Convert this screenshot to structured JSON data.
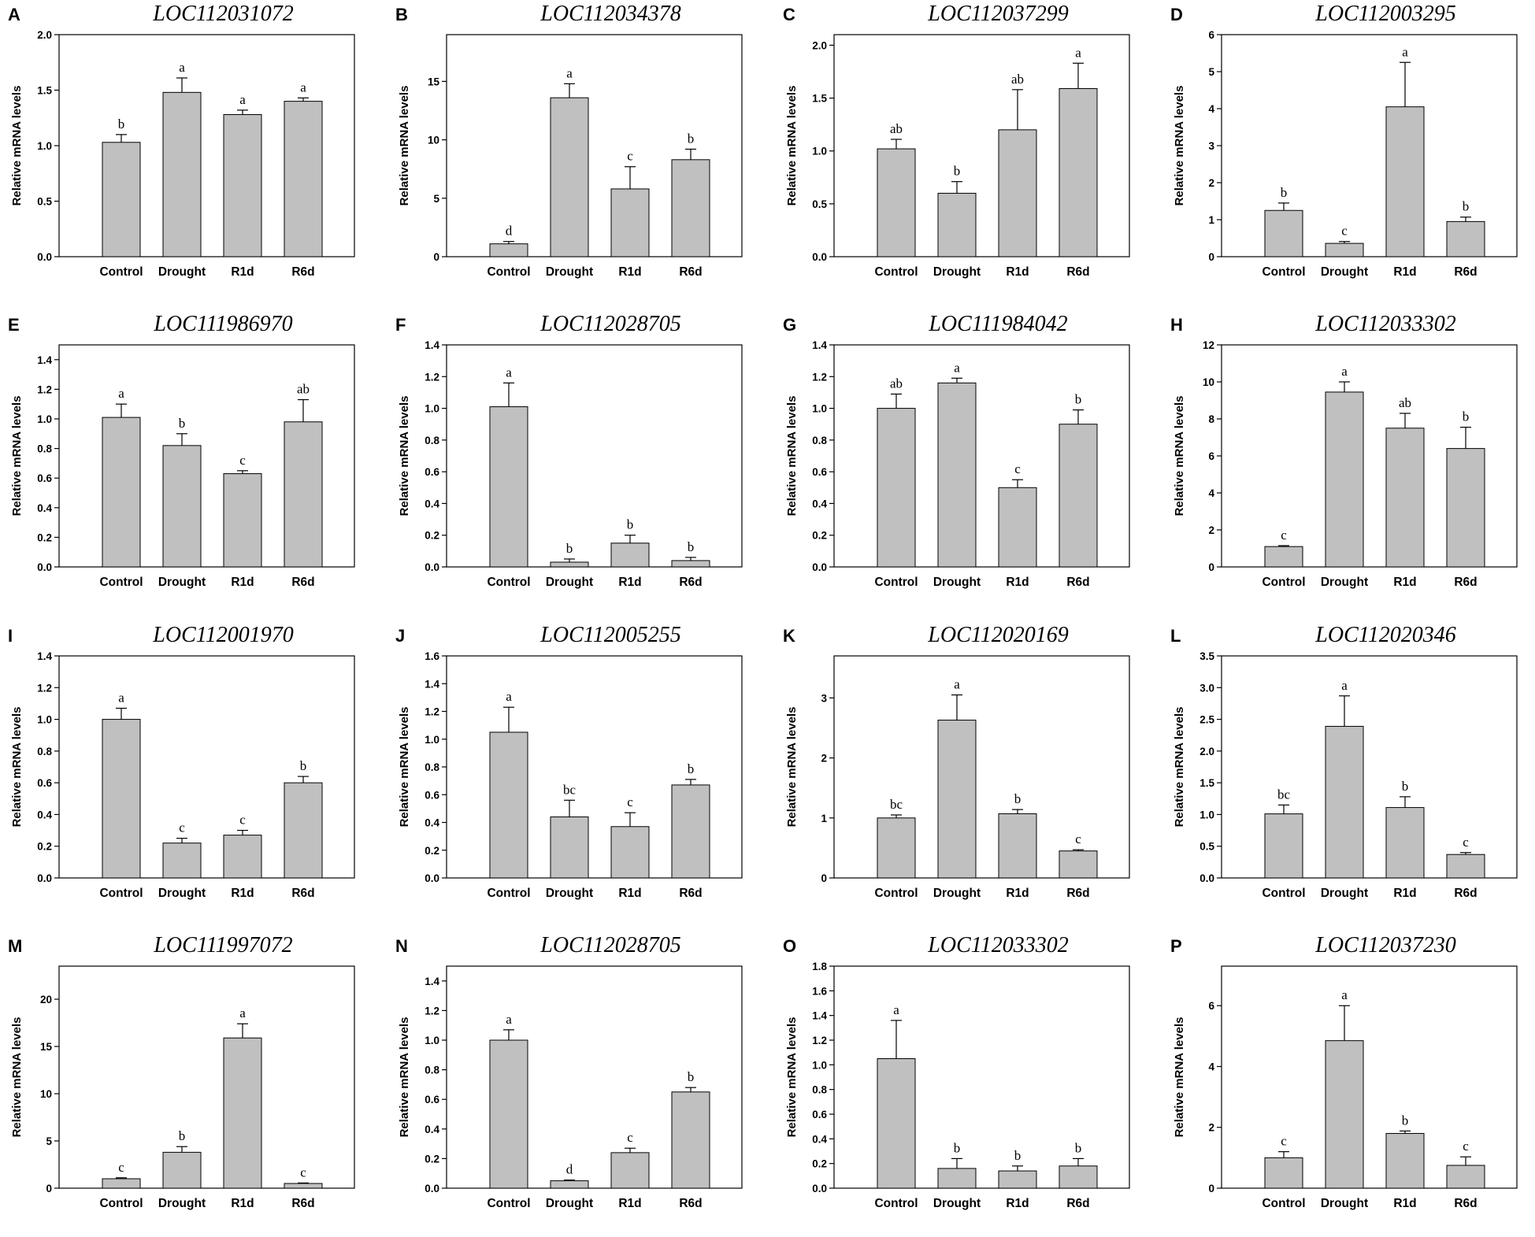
{
  "figure": {
    "bar_color": "#c0c0c0",
    "axis_color": "#000000"
  },
  "chart_data": [
    {
      "panel": "A",
      "type": "bar",
      "title": "LOC112031072",
      "ylabel": "Relative mRNA levels",
      "categories": [
        "Control",
        "Drought",
        "R1d",
        "R6d"
      ],
      "values": [
        1.03,
        1.48,
        1.28,
        1.4
      ],
      "errors": [
        0.07,
        0.13,
        0.04,
        0.03
      ],
      "letters": [
        "b",
        "a",
        "a",
        "a"
      ],
      "ylim": [
        0,
        2.0
      ],
      "ticks": [
        "0.0",
        "0.5",
        "1.0",
        "1.5",
        "2.0"
      ]
    },
    {
      "panel": "B",
      "type": "bar",
      "title": "LOC112034378",
      "ylabel": "Relative mRNA levels",
      "categories": [
        "Control",
        "Drought",
        "R1d",
        "R6d"
      ],
      "values": [
        1.1,
        13.6,
        5.8,
        8.3
      ],
      "errors": [
        0.2,
        1.2,
        1.9,
        0.9
      ],
      "letters": [
        "d",
        "a",
        "c",
        "b"
      ],
      "ylim": [
        0,
        19
      ],
      "ticks": [
        "0",
        "5",
        "10",
        "15"
      ]
    },
    {
      "panel": "C",
      "type": "bar",
      "title": "LOC112037299",
      "ylabel": "Relative mRNA levels",
      "categories": [
        "Control",
        "Drought",
        "R1d",
        "R6d"
      ],
      "values": [
        1.02,
        0.6,
        1.2,
        1.59
      ],
      "errors": [
        0.09,
        0.11,
        0.38,
        0.24
      ],
      "letters": [
        "ab",
        "b",
        "ab",
        "a"
      ],
      "ylim": [
        0,
        2.1
      ],
      "ticks": [
        "0.0",
        "0.5",
        "1.0",
        "1.5",
        "2.0"
      ]
    },
    {
      "panel": "D",
      "type": "bar",
      "title": "LOC112003295",
      "ylabel": "Relative mRNA levels",
      "categories": [
        "Control",
        "Drought",
        "R1d",
        "R6d"
      ],
      "values": [
        1.25,
        0.36,
        4.05,
        0.95
      ],
      "errors": [
        0.2,
        0.05,
        1.2,
        0.12
      ],
      "letters": [
        "b",
        "c",
        "a",
        "b"
      ],
      "ylim": [
        0,
        6
      ],
      "ticks": [
        "0",
        "1",
        "2",
        "3",
        "4",
        "5",
        "6"
      ]
    },
    {
      "panel": "E",
      "type": "bar",
      "title": "LOC111986970",
      "ylabel": "Relative mRNA levels",
      "categories": [
        "Control",
        "Drought",
        "R1d",
        "R6d"
      ],
      "values": [
        1.01,
        0.82,
        0.63,
        0.98
      ],
      "errors": [
        0.09,
        0.08,
        0.02,
        0.15
      ],
      "letters": [
        "a",
        "b",
        "c",
        "ab"
      ],
      "ylim": [
        0,
        1.5
      ],
      "ticks": [
        "0.0",
        "0.2",
        "0.4",
        "0.6",
        "0.8",
        "1.0",
        "1.2",
        "1.4"
      ]
    },
    {
      "panel": "F",
      "type": "bar",
      "title": "LOC112028705",
      "ylabel": "Relative mRNA levels",
      "categories": [
        "Control",
        "Drought",
        "R1d",
        "R6d"
      ],
      "values": [
        1.01,
        0.03,
        0.15,
        0.04
      ],
      "errors": [
        0.15,
        0.02,
        0.05,
        0.02
      ],
      "letters": [
        "a",
        "b",
        "b",
        "b"
      ],
      "ylim": [
        0,
        1.4
      ],
      "ticks": [
        "0.0",
        "0.2",
        "0.4",
        "0.6",
        "0.8",
        "1.0",
        "1.2",
        "1.4"
      ]
    },
    {
      "panel": "G",
      "type": "bar",
      "title": "LOC111984042",
      "ylabel": "Relative mRNA levels",
      "categories": [
        "Control",
        "Drought",
        "R1d",
        "R6d"
      ],
      "values": [
        1.0,
        1.16,
        0.5,
        0.9
      ],
      "errors": [
        0.09,
        0.03,
        0.05,
        0.09
      ],
      "letters": [
        "ab",
        "a",
        "c",
        "b"
      ],
      "ylim": [
        0,
        1.4
      ],
      "ticks": [
        "0.0",
        "0.2",
        "0.4",
        "0.6",
        "0.8",
        "1.0",
        "1.2",
        "1.4"
      ]
    },
    {
      "panel": "H",
      "type": "bar",
      "title": "LOC112033302",
      "ylabel": "Relative mRNA levels",
      "categories": [
        "Control",
        "Drought",
        "R1d",
        "R6d"
      ],
      "values": [
        1.1,
        9.45,
        7.5,
        6.4
      ],
      "errors": [
        0.05,
        0.55,
        0.8,
        1.15
      ],
      "letters": [
        "c",
        "a",
        "ab",
        "b"
      ],
      "ylim": [
        0,
        12
      ],
      "ticks": [
        "0",
        "2",
        "4",
        "6",
        "8",
        "10",
        "12"
      ]
    },
    {
      "panel": "I",
      "type": "bar",
      "title": "LOC112001970",
      "ylabel": "Relative mRNA levels",
      "categories": [
        "Control",
        "Drought",
        "R1d",
        "R6d"
      ],
      "values": [
        1.0,
        0.22,
        0.27,
        0.6
      ],
      "errors": [
        0.07,
        0.03,
        0.03,
        0.04
      ],
      "letters": [
        "a",
        "c",
        "c",
        "b"
      ],
      "ylim": [
        0,
        1.4
      ],
      "ticks": [
        "0.0",
        "0.2",
        "0.4",
        "0.6",
        "0.8",
        "1.0",
        "1.2",
        "1.4"
      ]
    },
    {
      "panel": "J",
      "type": "bar",
      "title": "LOC112005255",
      "ylabel": "Relative mRNA levels",
      "categories": [
        "Control",
        "Drought",
        "R1d",
        "R6d"
      ],
      "values": [
        1.05,
        0.44,
        0.37,
        0.67
      ],
      "errors": [
        0.18,
        0.12,
        0.1,
        0.04
      ],
      "letters": [
        "a",
        "bc",
        "c",
        "b"
      ],
      "ylim": [
        0,
        1.6
      ],
      "ticks": [
        "0.0",
        "0.2",
        "0.4",
        "0.6",
        "0.8",
        "1.0",
        "1.2",
        "1.4",
        "1.6"
      ]
    },
    {
      "panel": "K",
      "type": "bar",
      "title": "LOC112020169",
      "ylabel": "Relative mRNA levels",
      "categories": [
        "Control",
        "Drought",
        "R1d",
        "R6d"
      ],
      "values": [
        1.0,
        2.63,
        1.07,
        0.45
      ],
      "errors": [
        0.05,
        0.42,
        0.07,
        0.02
      ],
      "letters": [
        "bc",
        "a",
        "b",
        "c"
      ],
      "ylim": [
        0,
        3.7
      ],
      "ticks": [
        "0",
        "1",
        "2",
        "3"
      ]
    },
    {
      "panel": "L",
      "type": "bar",
      "title": "LOC112020346",
      "ylabel": "Relative mRNA levels",
      "categories": [
        "Control",
        "Drought",
        "R1d",
        "R6d"
      ],
      "values": [
        1.01,
        2.39,
        1.11,
        0.37
      ],
      "errors": [
        0.14,
        0.48,
        0.17,
        0.03
      ],
      "letters": [
        "bc",
        "a",
        "b",
        "c"
      ],
      "ylim": [
        0,
        3.5
      ],
      "ticks": [
        "0.0",
        "0.5",
        "1.0",
        "1.5",
        "2.0",
        "2.5",
        "3.0",
        "3.5"
      ]
    },
    {
      "panel": "M",
      "type": "bar",
      "title": "LOC111997072",
      "ylabel": "Relative mRNA levels",
      "categories": [
        "Control",
        "Drought",
        "R1d",
        "R6d"
      ],
      "values": [
        1.0,
        3.8,
        15.9,
        0.5
      ],
      "errors": [
        0.1,
        0.6,
        1.5,
        0.05
      ],
      "letters": [
        "c",
        "b",
        "a",
        "c"
      ],
      "ylim": [
        0,
        23.5
      ],
      "ticks": [
        "0",
        "5",
        "10",
        "15",
        "20"
      ]
    },
    {
      "panel": "N",
      "type": "bar",
      "title": "LOC112028705",
      "ylabel": "Relative mRNA levels",
      "categories": [
        "Control",
        "Drought",
        "R1d",
        "R6d"
      ],
      "values": [
        1.0,
        0.05,
        0.24,
        0.65
      ],
      "errors": [
        0.07,
        0.005,
        0.03,
        0.03
      ],
      "letters": [
        "a",
        "d",
        "c",
        "b"
      ],
      "ylim": [
        0,
        1.5
      ],
      "ticks": [
        "0.0",
        "0.2",
        "0.4",
        "0.6",
        "0.8",
        "1.0",
        "1.2",
        "1.4"
      ]
    },
    {
      "panel": "O",
      "type": "bar",
      "title": "LOC112033302",
      "ylabel": "Relative mRNA levels",
      "categories": [
        "Control",
        "Drought",
        "R1d",
        "R6d"
      ],
      "values": [
        1.05,
        0.16,
        0.14,
        0.18
      ],
      "errors": [
        0.31,
        0.08,
        0.04,
        0.06
      ],
      "letters": [
        "a",
        "b",
        "b",
        "b"
      ],
      "ylim": [
        0,
        1.8
      ],
      "ticks": [
        "0.0",
        "0.2",
        "0.4",
        "0.6",
        "0.8",
        "1.0",
        "1.2",
        "1.4",
        "1.6",
        "1.8"
      ]
    },
    {
      "panel": "P",
      "type": "bar",
      "title": "LOC112037230",
      "ylabel": "Relative mRNA levels",
      "categories": [
        "Control",
        "Drought",
        "R1d",
        "R6d"
      ],
      "values": [
        1.0,
        4.85,
        1.8,
        0.75
      ],
      "errors": [
        0.2,
        1.15,
        0.08,
        0.28
      ],
      "letters": [
        "c",
        "a",
        "b",
        "c"
      ],
      "ylim": [
        0,
        7.3
      ],
      "ticks": [
        "0",
        "2",
        "4",
        "6"
      ]
    }
  ]
}
